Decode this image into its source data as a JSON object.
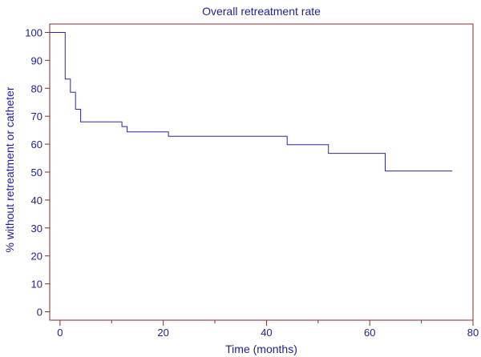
{
  "chart_data": {
    "type": "line",
    "title": "Overall retreatment rate",
    "xlabel": "Time (months)",
    "ylabel": "% without retreatment or catheter",
    "xlim": [
      -2,
      80
    ],
    "ylim": [
      -3,
      103
    ],
    "x_ticks": [
      0,
      20,
      40,
      60,
      80
    ],
    "x_minor_ticks": [
      10,
      30,
      50,
      70
    ],
    "y_ticks": [
      0,
      10,
      20,
      30,
      40,
      50,
      60,
      70,
      80,
      90,
      100
    ],
    "grid": false,
    "step": true,
    "series": [
      {
        "color": "#2a2aa0",
        "points": [
          [
            -2,
            100
          ],
          [
            1,
            100
          ],
          [
            1,
            83.3
          ],
          [
            2,
            83.3
          ],
          [
            2,
            78.6
          ],
          [
            3,
            78.6
          ],
          [
            3,
            72.5
          ],
          [
            4,
            72.5
          ],
          [
            4,
            68
          ],
          [
            12,
            68
          ],
          [
            12,
            66.3
          ],
          [
            13,
            66.3
          ],
          [
            13,
            64.4
          ],
          [
            21,
            64.4
          ],
          [
            21,
            62.8
          ],
          [
            44,
            62.8
          ],
          [
            44,
            59.8
          ],
          [
            52,
            59.8
          ],
          [
            52,
            56.7
          ],
          [
            63,
            56.7
          ],
          [
            63,
            50.4
          ],
          [
            76,
            50.4
          ]
        ]
      }
    ]
  }
}
